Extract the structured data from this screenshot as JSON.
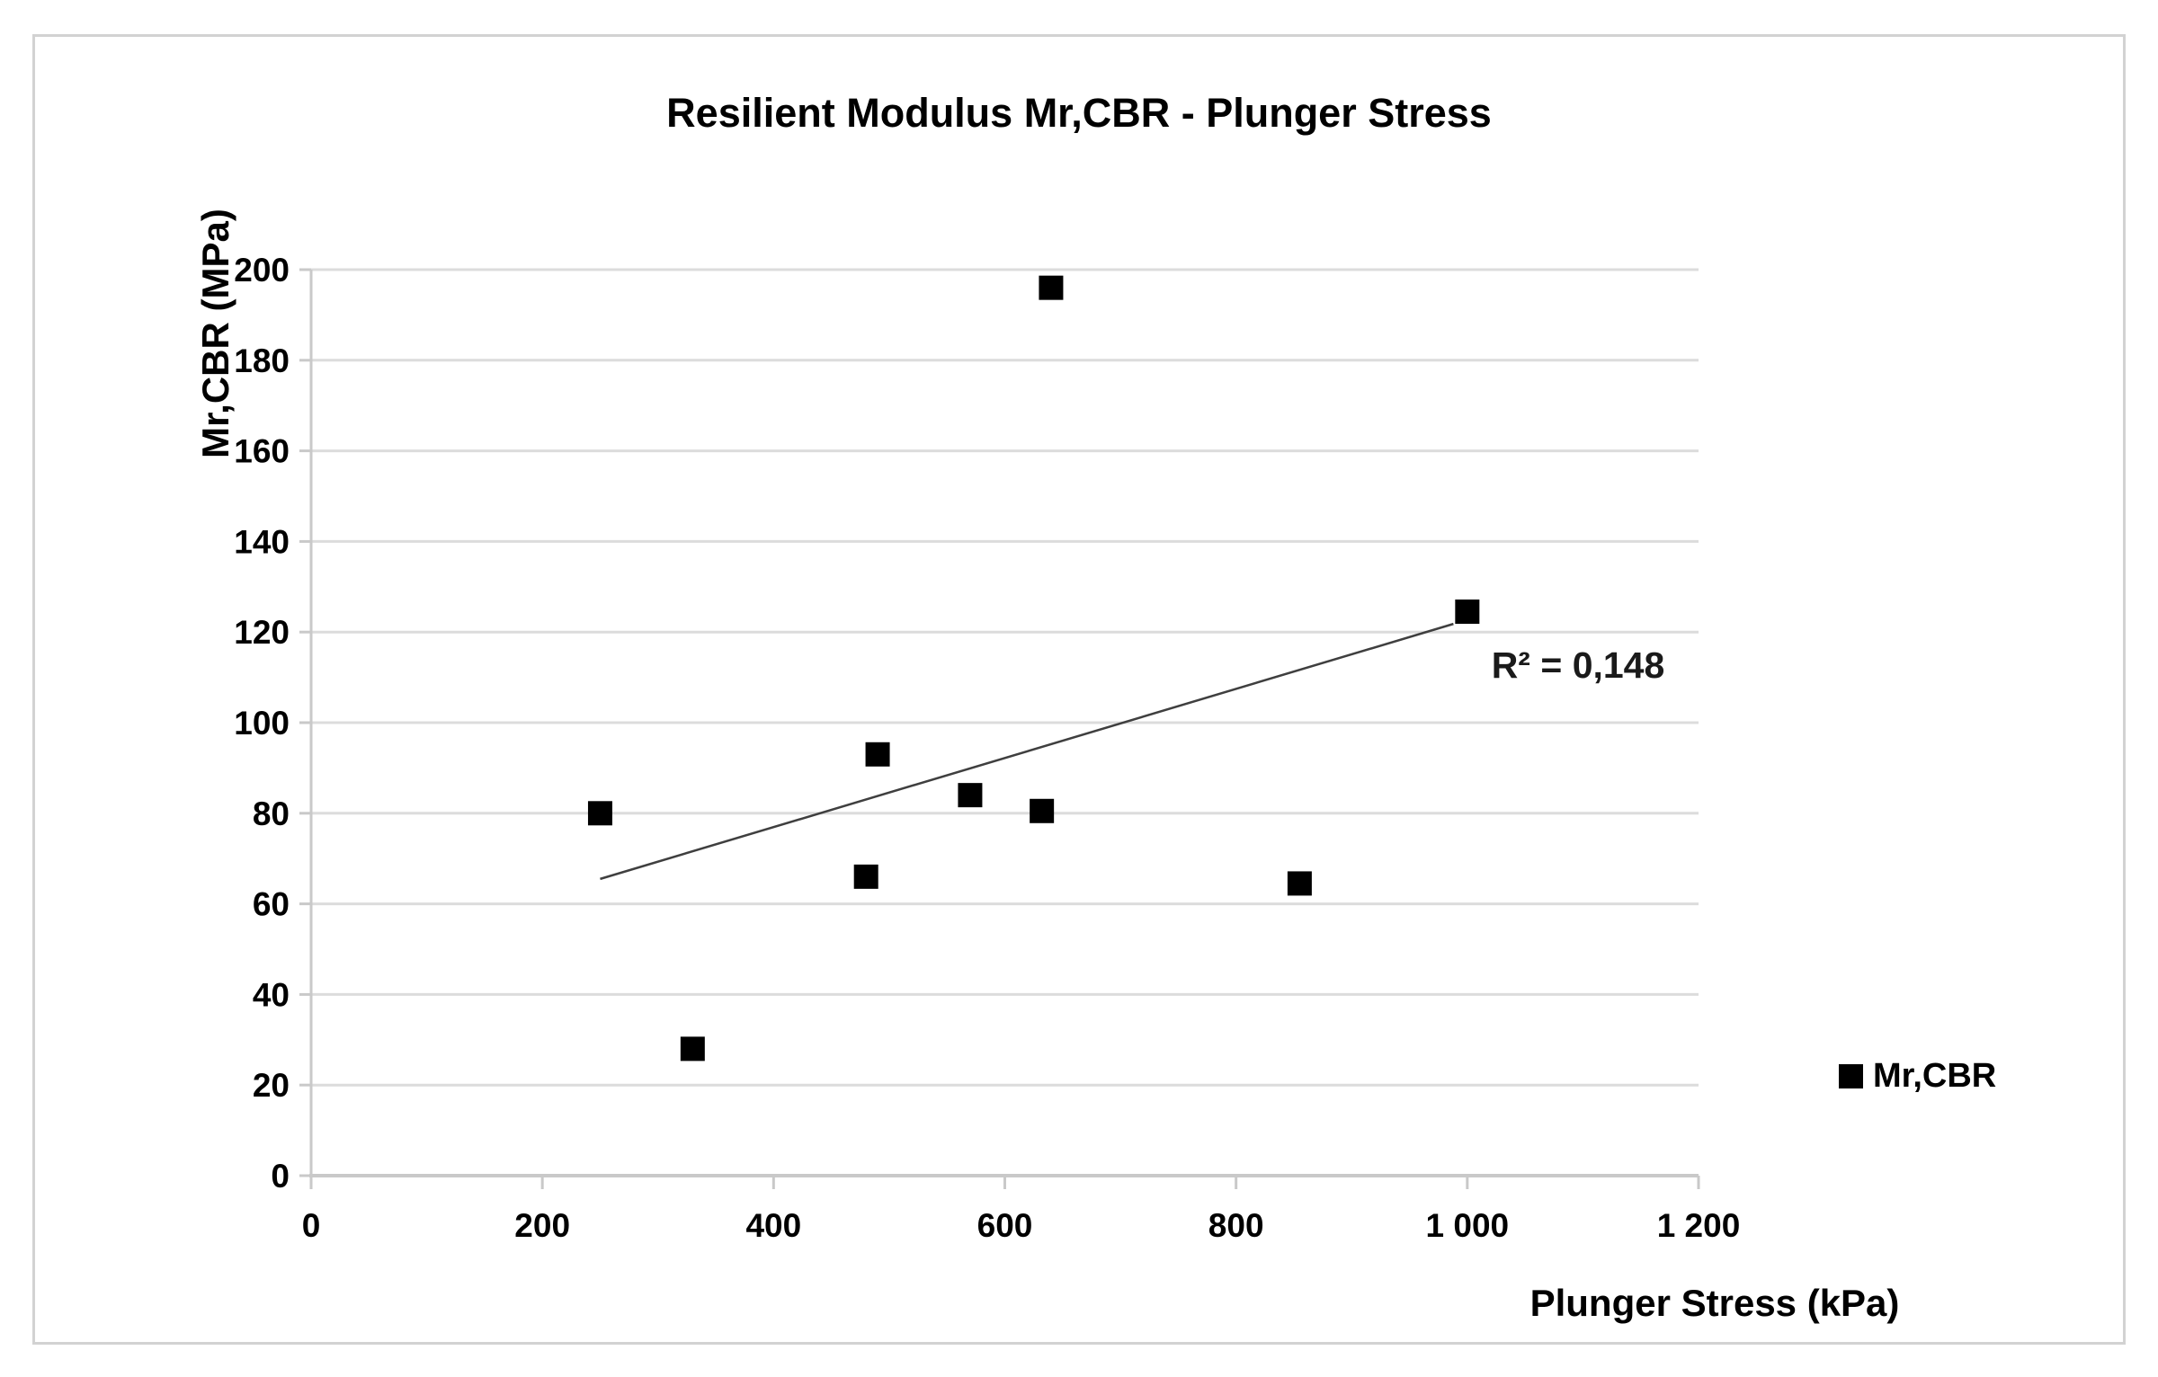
{
  "chart_data": {
    "type": "scatter",
    "title": "Resilient Modulus Mr,CBR - Plunger Stress",
    "xlabel": "Plunger Stress (kPa)",
    "ylabel": "Mr,CBR (MPa)",
    "xlim": [
      0,
      1200
    ],
    "ylim": [
      0,
      200
    ],
    "x_ticks": [
      0,
      200,
      400,
      600,
      800,
      1000,
      1200
    ],
    "x_tick_labels": [
      "0",
      "200",
      "400",
      "600",
      "800",
      "1 000",
      "1 200"
    ],
    "y_ticks": [
      0,
      20,
      40,
      60,
      80,
      100,
      120,
      140,
      160,
      180,
      200
    ],
    "y_tick_labels": [
      "0",
      "20",
      "40",
      "60",
      "80",
      "100",
      "120",
      "140",
      "160",
      "180",
      "200"
    ],
    "grid": "horizontal-only",
    "legend_position": "right-middle",
    "series": [
      {
        "name": "Mr,CBR",
        "marker": "square",
        "color": "#000000",
        "points": [
          {
            "x": 250,
            "y": 80
          },
          {
            "x": 330,
            "y": 28
          },
          {
            "x": 480,
            "y": 66
          },
          {
            "x": 490,
            "y": 93
          },
          {
            "x": 570,
            "y": 84
          },
          {
            "x": 632,
            "y": 80.5
          },
          {
            "x": 640,
            "y": 196
          },
          {
            "x": 855,
            "y": 64.5
          },
          {
            "x": 1000,
            "y": 124.5
          }
        ]
      }
    ],
    "trendline": {
      "x1": 250,
      "y1": 65.5,
      "x2": 988,
      "y2": 121.8,
      "r2_label": "R² = 0,148"
    },
    "legend": {
      "entries": [
        {
          "label": "Mr,CBR",
          "marker": "square",
          "color": "#000000"
        }
      ]
    },
    "colors": {
      "gridline": "#dcdcdc",
      "axis": "#c9c9c9",
      "marker": "#000000",
      "trendline": "#3f3f3f",
      "text": "#000000",
      "frame_border": "#d2d2d2",
      "background": "#ffffff"
    }
  }
}
